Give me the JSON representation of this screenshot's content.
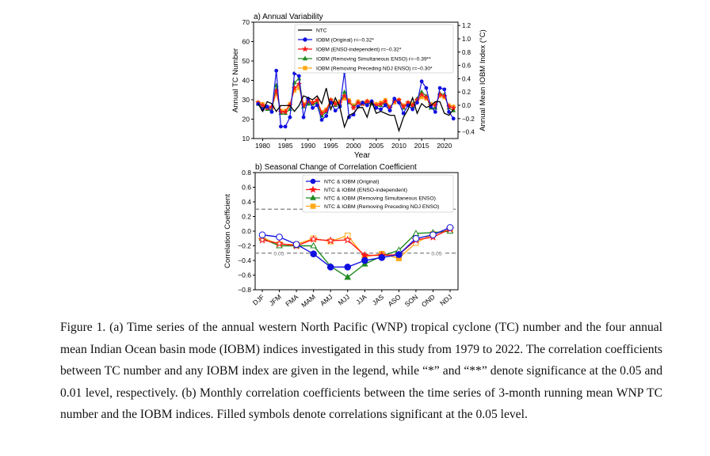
{
  "colors": {
    "ntc": "#000000",
    "original": "#1010e0",
    "enso_independent": "#ff1a1a",
    "removing_simultaneous": "#208a20",
    "removing_preceding": "#ffaa1a",
    "significance_line": "#808080"
  },
  "chart_data": [
    {
      "type": "line",
      "title": "a) Annual Variability",
      "xlabel": "Year",
      "ylabel": "Annual TC Number",
      "y2label": "Annual Mean IOBM Index (°C)",
      "xlim": [
        1978,
        2023
      ],
      "ylim": [
        10,
        70
      ],
      "y2lim": [
        -0.5,
        1.25
      ],
      "xticks": [
        "1980",
        "1985",
        "1990",
        "1995",
        "2000",
        "2005",
        "2010",
        "2015",
        "2020"
      ],
      "yticks": [
        "10",
        "20",
        "30",
        "40",
        "50",
        "60",
        "70"
      ],
      "y2ticks": [
        "−0.4",
        "−0.2",
        "0.0",
        "0.2",
        "0.4",
        "0.6",
        "0.8",
        "1.0",
        "1.2"
      ],
      "legend_position": "top-center",
      "x": [
        1979,
        1980,
        1981,
        1982,
        1983,
        1984,
        1985,
        1986,
        1987,
        1988,
        1989,
        1990,
        1991,
        1992,
        1993,
        1994,
        1995,
        1996,
        1997,
        1998,
        1999,
        2000,
        2001,
        2002,
        2003,
        2004,
        2005,
        2006,
        2007,
        2008,
        2009,
        2010,
        2011,
        2012,
        2013,
        2014,
        2015,
        2016,
        2017,
        2018,
        2019,
        2020,
        2021,
        2022
      ],
      "series": [
        {
          "name": "NTC",
          "key": "ntc",
          "axis": "left",
          "marker": "none",
          "values": [
            28,
            24,
            29,
            28,
            24,
            27,
            27,
            27,
            24,
            27,
            32,
            31,
            30,
            32,
            28,
            36,
            25,
            31,
            26,
            16,
            22,
            23,
            26,
            26,
            21,
            29,
            23,
            24,
            23,
            22,
            22,
            14,
            21,
            25,
            31,
            23,
            28,
            26,
            27,
            29,
            29,
            23,
            22,
            25
          ]
        },
        {
          "name": "IOBM (Original) r=−0.32*",
          "key": "original",
          "axis": "right",
          "marker": "circle",
          "values": [
            0.02,
            -0.06,
            -0.02,
            -0.1,
            0.52,
            -0.32,
            -0.32,
            -0.18,
            0.48,
            0.44,
            -0.18,
            0.1,
            -0.04,
            0.0,
            -0.22,
            -0.16,
            0.04,
            -0.08,
            -0.02,
            0.5,
            -0.18,
            -0.14,
            -0.02,
            0.04,
            0.0,
            0.06,
            -0.04,
            -0.06,
            0.0,
            -0.08,
            0.1,
            0.04,
            -0.12,
            0.0,
            -0.06,
            0.04,
            0.36,
            0.26,
            -0.02,
            -0.1,
            0.26,
            0.24,
            -0.1,
            -0.2
          ]
        },
        {
          "name": "IOBM (ENSO-independent) r=−0.32*",
          "key": "enso_independent",
          "axis": "right",
          "marker": "star",
          "values": [
            0.04,
            0.0,
            -0.04,
            -0.02,
            0.22,
            -0.1,
            -0.1,
            0.0,
            0.26,
            0.32,
            0.0,
            0.06,
            0.04,
            0.08,
            -0.12,
            -0.08,
            0.08,
            0.02,
            0.04,
            0.14,
            0.06,
            -0.04,
            0.04,
            0.02,
            0.06,
            0.04,
            0.0,
            0.02,
            0.06,
            -0.04,
            0.06,
            0.08,
            -0.02,
            0.04,
            0.0,
            0.08,
            0.16,
            0.12,
            0.0,
            0.0,
            0.16,
            0.14,
            -0.02,
            -0.04
          ]
        },
        {
          "name": "IOBM (Removing Simultaneous ENSO) r=−0.39**",
          "key": "removing_simultaneous",
          "axis": "right",
          "marker": "triangle",
          "values": [
            0.02,
            -0.02,
            -0.06,
            -0.08,
            0.3,
            -0.12,
            -0.12,
            -0.06,
            0.34,
            0.4,
            -0.02,
            0.02,
            0.02,
            0.04,
            -0.16,
            -0.1,
            0.08,
            0.0,
            0.02,
            0.2,
            0.04,
            -0.02,
            0.04,
            0.02,
            0.04,
            0.02,
            -0.02,
            0.0,
            0.04,
            -0.06,
            0.08,
            0.06,
            -0.04,
            0.02,
            -0.02,
            0.1,
            0.2,
            0.14,
            -0.04,
            -0.04,
            0.18,
            0.16,
            -0.04,
            -0.08
          ]
        },
        {
          "name": "IOBM (Removing Preceding NDJ ENSO) r=−0.30*",
          "key": "removing_preceding",
          "axis": "right",
          "marker": "square",
          "values": [
            0.04,
            0.02,
            -0.04,
            -0.04,
            0.18,
            -0.08,
            -0.08,
            0.02,
            0.22,
            0.26,
            0.02,
            0.08,
            0.04,
            0.06,
            -0.1,
            -0.06,
            0.08,
            0.04,
            0.06,
            0.1,
            0.08,
            0.0,
            0.06,
            0.04,
            0.06,
            0.04,
            0.02,
            0.04,
            0.08,
            -0.02,
            0.04,
            0.08,
            0.0,
            0.04,
            0.02,
            0.08,
            0.12,
            0.1,
            0.02,
            0.02,
            0.14,
            0.12,
            0.0,
            -0.02
          ]
        }
      ]
    },
    {
      "type": "line",
      "title": "b) Seasonal Change of Correlation Coefficient",
      "xlabel": "",
      "ylabel": "Correlation Coefficient",
      "ylim": [
        -0.8,
        0.8
      ],
      "yticks": [
        "0.8",
        "0.6",
        "0.4",
        "0.2",
        "0.0",
        "−0.2",
        "−0.4",
        "−0.6",
        "−0.8"
      ],
      "categories": [
        "DJF",
        "JFM",
        "FMA",
        "MAM",
        "AMJ",
        "MJJ",
        "JJA",
        "JAS",
        "ASO",
        "SON",
        "OND",
        "NDJ"
      ],
      "significance_label": "0.05",
      "significance_levels": [
        0.3,
        -0.3
      ],
      "legend_position": "top-center",
      "series": [
        {
          "name": "NTC & IOBM (Original)",
          "key": "original",
          "marker": "circle",
          "values": [
            -0.05,
            -0.08,
            -0.18,
            -0.31,
            -0.49,
            -0.49,
            -0.4,
            -0.36,
            -0.32,
            -0.1,
            -0.05,
            0.05
          ],
          "significant": [
            false,
            false,
            false,
            true,
            true,
            true,
            true,
            true,
            true,
            false,
            false,
            false
          ]
        },
        {
          "name": "NTC & IOBM (ENSO-independent)",
          "key": "enso_independent",
          "marker": "star",
          "values": [
            -0.12,
            -0.17,
            -0.2,
            -0.11,
            -0.13,
            -0.12,
            -0.33,
            -0.33,
            -0.32,
            -0.12,
            -0.08,
            0.03
          ],
          "significant": [
            false,
            false,
            false,
            false,
            false,
            false,
            true,
            true,
            true,
            false,
            false,
            false
          ]
        },
        {
          "name": "NTC & IOBM (Removing Simultaneous ENSO)",
          "key": "removing_simultaneous",
          "marker": "triangle",
          "values": [
            -0.1,
            -0.2,
            -0.2,
            -0.2,
            -0.48,
            -0.63,
            -0.45,
            -0.34,
            -0.26,
            -0.03,
            -0.02,
            0.0
          ],
          "significant": [
            false,
            false,
            false,
            false,
            true,
            true,
            true,
            true,
            false,
            false,
            false,
            false
          ]
        },
        {
          "name": "NTC & IOBM (Removing Preceding NDJ ENSO)",
          "key": "removing_preceding",
          "marker": "square",
          "values": [
            -0.09,
            -0.18,
            -0.18,
            -0.1,
            -0.14,
            -0.06,
            -0.35,
            -0.31,
            -0.37,
            -0.16,
            -0.04,
            0.02
          ],
          "significant": [
            false,
            false,
            false,
            false,
            false,
            false,
            true,
            true,
            true,
            false,
            false,
            false
          ]
        }
      ]
    }
  ],
  "caption": "Figure 1. (a) Time series of the annual western North Pacific (WNP) tropical cyclone (TC) number and the four annual mean Indian Ocean basin mode (IOBM) indices investigated in this study from 1979 to 2022. The correlation coefficients between TC number and any IOBM index are given in the legend, while “*” and “**” denote significance at the 0.05 and 0.01 level, respectively. (b) Monthly correlation coefficients between the time series of 3-month running mean WNP TC number and the IOBM indices. Filled symbols denote correlations significant at the 0.05 level."
}
